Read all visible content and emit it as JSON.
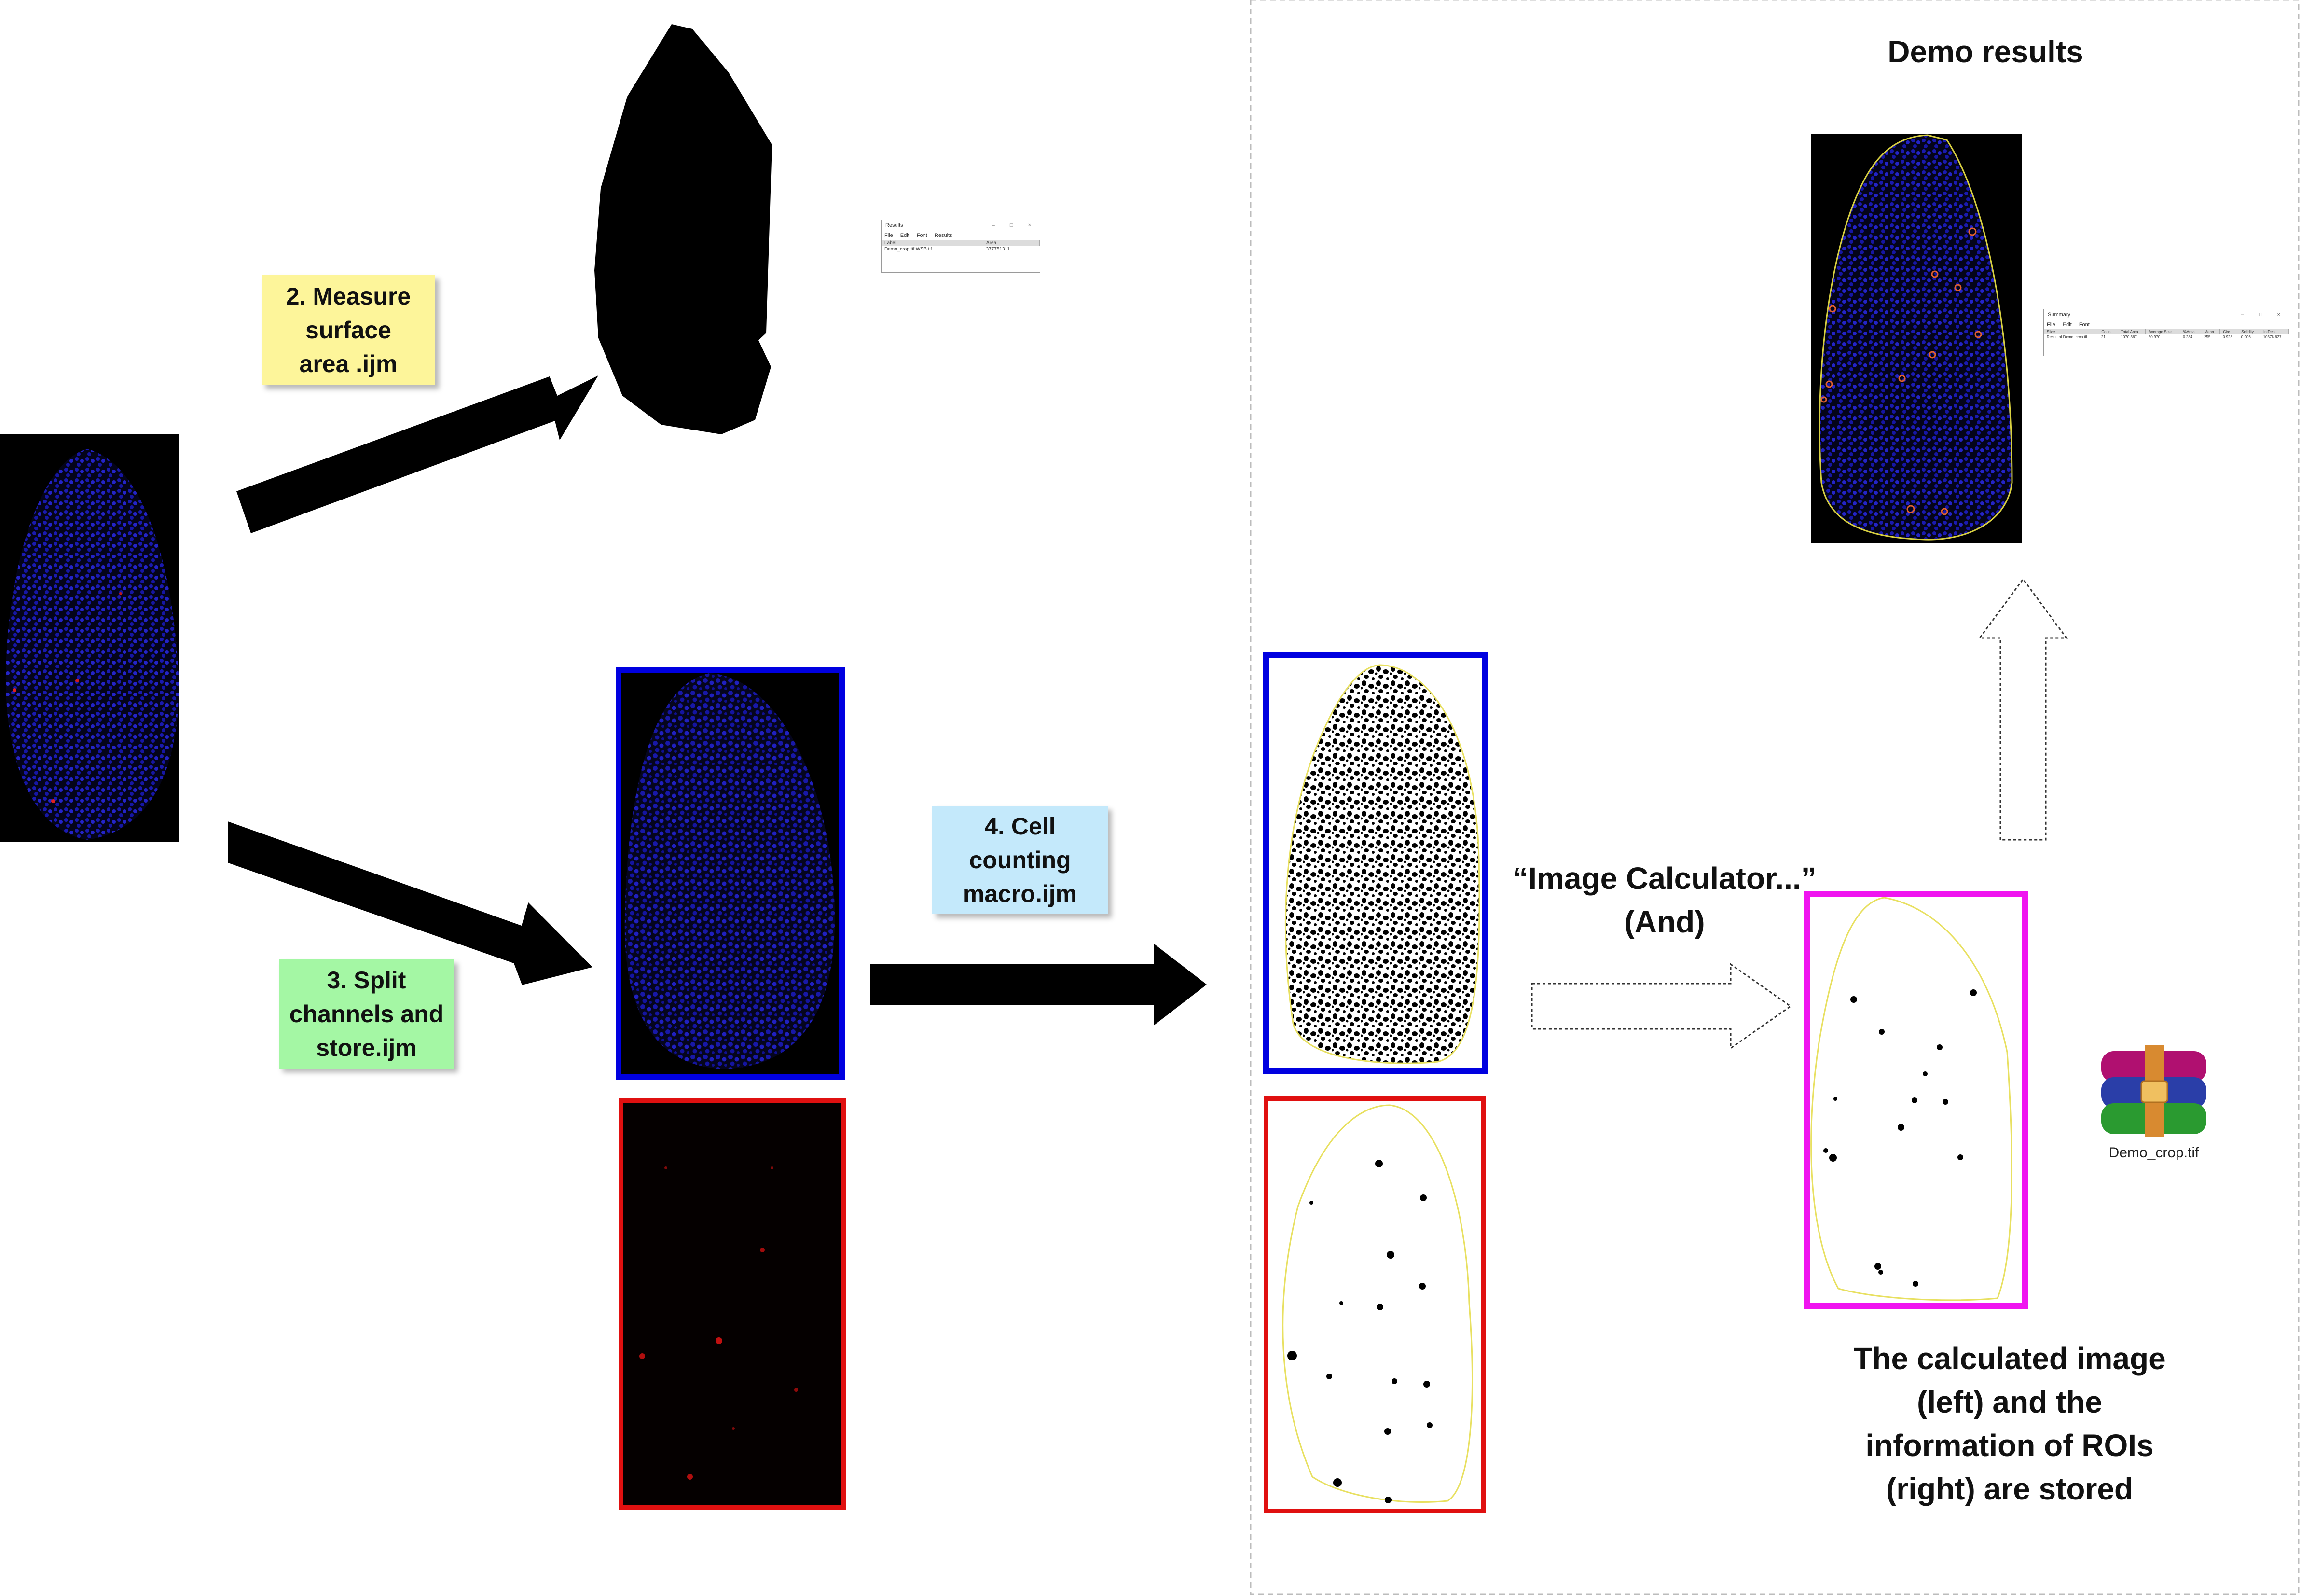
{
  "diagram": {
    "title": "Demo results",
    "steps": {
      "measure": "2. Measure\nsurface\narea .ijm",
      "split": "3. Split\nchannels and\nstore.ijm",
      "count": "4. Cell\ncounting\nmacro.ijm"
    },
    "calculator_label": "“Image Calculator...”\n(And)",
    "stored_caption": "The calculated image\n(left) and the\ninformation of ROIs\n(right) are stored",
    "archive_file": "Demo_crop.tif",
    "colors": {
      "measure_note": "#fdf59a",
      "split_note": "#a4f7a4",
      "count_note": "#c4e9fb",
      "blue_frame": "#0000e0",
      "red_frame": "#e01010",
      "magenta_frame": "#f014f0"
    },
    "results_window": {
      "title": "Results",
      "menu": [
        "File",
        "Edit",
        "Font",
        "Results"
      ],
      "headers": [
        "Label",
        "Area"
      ],
      "rows": [
        [
          "Demo_crop.tif:WSB.tif",
          "377751311"
        ]
      ]
    },
    "summary_window": {
      "title": "Summary",
      "menu": [
        "File",
        "Edit",
        "Font"
      ],
      "headers": [
        "Slice",
        "Count",
        "Total Area",
        "Average Size",
        "%Area",
        "Mean",
        "Circ.",
        "Solidity",
        "IntDen"
      ],
      "rows": [
        [
          "Result of Demo_crop.tif",
          "21",
          "1070.367",
          "50.970",
          "0.284",
          "255",
          "0.928",
          "0.906",
          "10378.627"
        ]
      ]
    },
    "icons": [
      "archive-icon"
    ]
  }
}
